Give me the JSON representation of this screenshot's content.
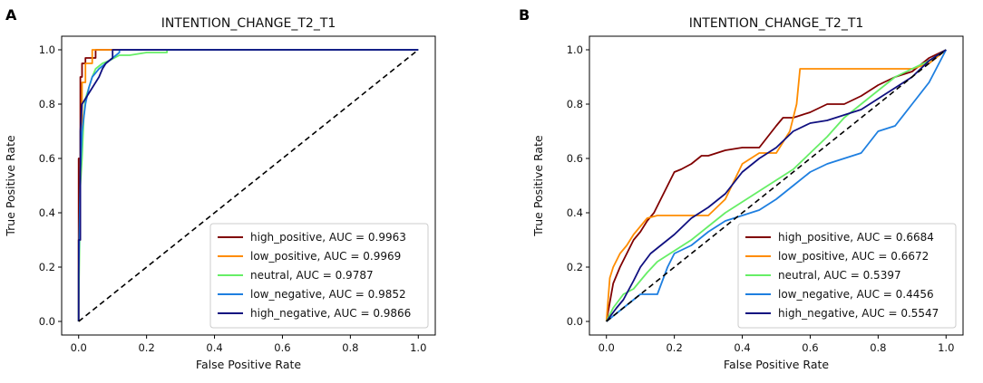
{
  "chart_data": [
    {
      "panel_label": "A",
      "type": "line",
      "title": "INTENTION_CHANGE_T2_T1",
      "xlabel": "False Positive Rate",
      "ylabel": "True Positive Rate",
      "xlim": [
        0,
        1
      ],
      "ylim": [
        0,
        1
      ],
      "xticks": [
        "0.0",
        "0.2",
        "0.4",
        "0.6",
        "0.8",
        "1.0"
      ],
      "yticks": [
        "0.0",
        "0.2",
        "0.4",
        "0.6",
        "0.8",
        "1.0"
      ],
      "legend_position": "lower-right",
      "series": [
        {
          "name": "high_positive",
          "label": "high_positive, AUC = 0.9963",
          "color": "#800000",
          "x": [
            0,
            0.0,
            0.005,
            0.005,
            0.01,
            0.01,
            0.02,
            0.02,
            0.05,
            0.05,
            1.0
          ],
          "y": [
            0,
            0.6,
            0.6,
            0.9,
            0.9,
            0.95,
            0.95,
            0.97,
            0.97,
            1.0,
            1.0
          ]
        },
        {
          "name": "low_positive",
          "label": "low_positive, AUC = 0.9969",
          "color": "#ff8c00",
          "x": [
            0,
            0.0,
            0.005,
            0.005,
            0.01,
            0.01,
            0.02,
            0.02,
            0.04,
            0.04,
            1.0
          ],
          "y": [
            0,
            0.3,
            0.3,
            0.7,
            0.7,
            0.88,
            0.88,
            0.95,
            0.95,
            1.0,
            1.0
          ]
        },
        {
          "name": "neutral",
          "label": "neutral, AUC = 0.9787",
          "color": "#66ee66",
          "x": [
            0,
            0.0,
            0.005,
            0.01,
            0.015,
            0.02,
            0.03,
            0.04,
            0.05,
            0.07,
            0.09,
            0.12,
            0.15,
            0.2,
            0.26,
            0.26,
            1.0
          ],
          "y": [
            0,
            0.05,
            0.5,
            0.6,
            0.75,
            0.82,
            0.86,
            0.9,
            0.93,
            0.95,
            0.96,
            0.98,
            0.98,
            0.99,
            0.99,
            1.0,
            1.0
          ]
        },
        {
          "name": "low_negative",
          "label": "low_negative, AUC = 0.9852",
          "color": "#1e7fe0",
          "x": [
            0,
            0.0,
            0.005,
            0.01,
            0.02,
            0.03,
            0.04,
            0.06,
            0.08,
            0.1,
            0.12,
            0.12,
            1.0
          ],
          "y": [
            0,
            0.17,
            0.55,
            0.7,
            0.8,
            0.86,
            0.9,
            0.93,
            0.95,
            0.97,
            0.99,
            1.0,
            1.0
          ]
        },
        {
          "name": "high_negative",
          "label": "high_negative, AUC = 0.9866",
          "color": "#101080",
          "x": [
            0,
            0.0,
            0.005,
            0.005,
            0.01,
            0.02,
            0.03,
            0.04,
            0.05,
            0.06,
            0.07,
            0.08,
            0.1,
            0.1,
            1.0
          ],
          "y": [
            0,
            0.3,
            0.3,
            0.7,
            0.8,
            0.82,
            0.84,
            0.86,
            0.88,
            0.9,
            0.93,
            0.95,
            0.97,
            1.0,
            1.0
          ]
        }
      ],
      "diagonal": {
        "x": [
          0,
          1
        ],
        "y": [
          0,
          1
        ],
        "color": "#000000",
        "style": "dashed"
      }
    },
    {
      "panel_label": "B",
      "type": "line",
      "title": "INTENTION_CHANGE_T2_T1",
      "xlabel": "False Positive Rate",
      "ylabel": "True Positive Rate",
      "xlim": [
        0,
        1
      ],
      "ylim": [
        0,
        1
      ],
      "xticks": [
        "0.0",
        "0.2",
        "0.4",
        "0.6",
        "0.8",
        "1.0"
      ],
      "yticks": [
        "0.0",
        "0.2",
        "0.4",
        "0.6",
        "0.8",
        "1.0"
      ],
      "legend_position": "lower-right",
      "series": [
        {
          "name": "high_positive",
          "label": "high_positive, AUC = 0.6684",
          "color": "#800000",
          "x": [
            0,
            0.02,
            0.04,
            0.06,
            0.08,
            0.1,
            0.12,
            0.14,
            0.16,
            0.18,
            0.2,
            0.22,
            0.25,
            0.28,
            0.3,
            0.35,
            0.4,
            0.45,
            0.5,
            0.52,
            0.55,
            0.6,
            0.65,
            0.7,
            0.75,
            0.8,
            0.85,
            0.9,
            0.95,
            1.0
          ],
          "y": [
            0,
            0.14,
            0.2,
            0.25,
            0.3,
            0.33,
            0.37,
            0.4,
            0.45,
            0.5,
            0.55,
            0.56,
            0.58,
            0.61,
            0.61,
            0.63,
            0.64,
            0.64,
            0.72,
            0.75,
            0.75,
            0.77,
            0.8,
            0.8,
            0.83,
            0.87,
            0.9,
            0.92,
            0.97,
            1.0
          ]
        },
        {
          "name": "low_positive",
          "label": "low_positive, AUC = 0.6672",
          "color": "#ff8c00",
          "x": [
            0,
            0.01,
            0.02,
            0.04,
            0.06,
            0.08,
            0.1,
            0.12,
            0.15,
            0.2,
            0.25,
            0.3,
            0.35,
            0.4,
            0.45,
            0.5,
            0.54,
            0.56,
            0.57,
            0.6,
            0.7,
            0.8,
            0.9,
            0.95,
            1.0
          ],
          "y": [
            0,
            0.16,
            0.2,
            0.25,
            0.28,
            0.32,
            0.35,
            0.38,
            0.39,
            0.39,
            0.39,
            0.39,
            0.45,
            0.58,
            0.62,
            0.62,
            0.7,
            0.8,
            0.93,
            0.93,
            0.93,
            0.93,
            0.93,
            0.95,
            1.0
          ]
        },
        {
          "name": "neutral",
          "label": "neutral, AUC = 0.5397",
          "color": "#66ee66",
          "x": [
            0,
            0.02,
            0.05,
            0.08,
            0.1,
            0.12,
            0.15,
            0.2,
            0.25,
            0.3,
            0.35,
            0.4,
            0.45,
            0.5,
            0.55,
            0.6,
            0.65,
            0.7,
            0.75,
            0.8,
            0.85,
            0.9,
            0.95,
            1.0
          ],
          "y": [
            0,
            0.05,
            0.1,
            0.12,
            0.15,
            0.18,
            0.22,
            0.26,
            0.3,
            0.35,
            0.4,
            0.44,
            0.48,
            0.52,
            0.56,
            0.62,
            0.68,
            0.75,
            0.8,
            0.85,
            0.9,
            0.93,
            0.96,
            1.0
          ]
        },
        {
          "name": "low_negative",
          "label": "low_negative, AUC = 0.4456",
          "color": "#1e7fe0",
          "x": [
            0,
            0.03,
            0.05,
            0.08,
            0.1,
            0.15,
            0.18,
            0.2,
            0.25,
            0.3,
            0.35,
            0.4,
            0.45,
            0.5,
            0.55,
            0.6,
            0.65,
            0.7,
            0.75,
            0.8,
            0.85,
            0.9,
            0.95,
            1.0
          ],
          "y": [
            0,
            0.03,
            0.05,
            0.08,
            0.1,
            0.1,
            0.2,
            0.25,
            0.28,
            0.33,
            0.37,
            0.39,
            0.41,
            0.45,
            0.5,
            0.55,
            0.58,
            0.6,
            0.62,
            0.7,
            0.72,
            0.8,
            0.88,
            1.0
          ]
        },
        {
          "name": "high_negative",
          "label": "high_negative, AUC = 0.5547",
          "color": "#101080",
          "x": [
            0,
            0.03,
            0.05,
            0.08,
            0.1,
            0.13,
            0.15,
            0.2,
            0.25,
            0.3,
            0.35,
            0.4,
            0.45,
            0.5,
            0.55,
            0.6,
            0.65,
            0.7,
            0.75,
            0.8,
            0.85,
            0.9,
            0.95,
            1.0
          ],
          "y": [
            0,
            0.05,
            0.08,
            0.15,
            0.2,
            0.25,
            0.27,
            0.32,
            0.38,
            0.42,
            0.47,
            0.55,
            0.6,
            0.64,
            0.7,
            0.73,
            0.74,
            0.76,
            0.78,
            0.82,
            0.86,
            0.9,
            0.96,
            1.0
          ]
        }
      ],
      "diagonal": {
        "x": [
          0,
          1
        ],
        "y": [
          0,
          1
        ],
        "color": "#000000",
        "style": "dashed"
      }
    }
  ]
}
